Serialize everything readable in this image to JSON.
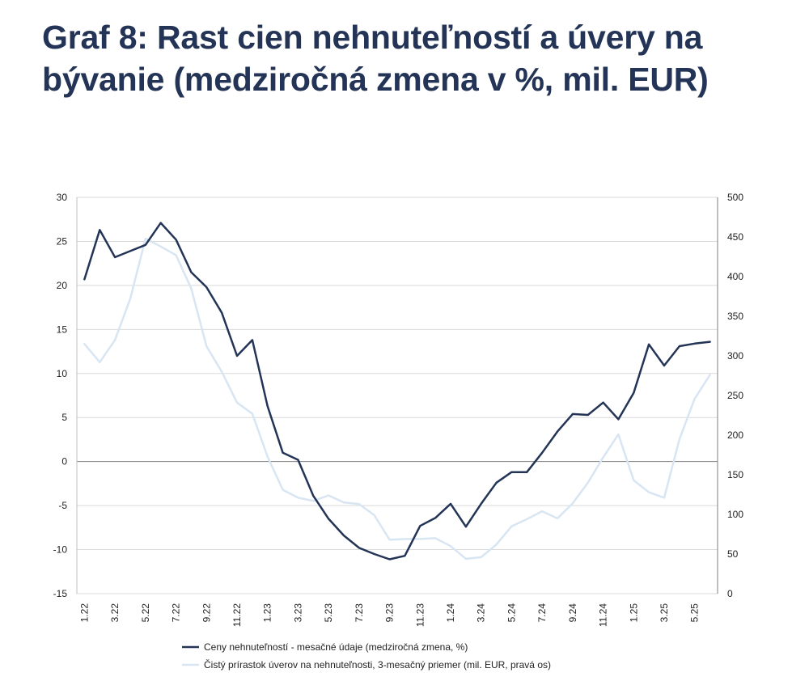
{
  "title": "Graf 8: Rast cien nehnuteľností a úvery na bývanie (medziročná zmena v %, mil. EUR)",
  "chart_data": {
    "type": "line",
    "y_left": {
      "ylim": [
        -15,
        30
      ],
      "ticks": [
        -15,
        -10,
        -5,
        0,
        5,
        10,
        15,
        20,
        25,
        30
      ]
    },
    "y_right": {
      "ylim": [
        0,
        500
      ],
      "ticks": [
        0,
        50,
        100,
        150,
        200,
        250,
        300,
        350,
        400,
        450,
        500
      ]
    },
    "x_labels": [
      "1.22",
      "3.22",
      "5.22",
      "7.22",
      "9.22",
      "11.22",
      "1.23",
      "3.23",
      "5.23",
      "7.23",
      "9.23",
      "11.23",
      "1.24",
      "3.24",
      "5.24",
      "7.24",
      "9.24",
      "11.24",
      "1.25",
      "3.25",
      "5.25"
    ],
    "legend_position": "bottom",
    "grid": true,
    "series": [
      {
        "name": "Ceny nehnuteľností - mesačné údaje (medziročná zmena, %)",
        "axis": "left",
        "color": "#233456",
        "values": [
          20.7,
          26.3,
          23.2,
          23.9,
          24.6,
          27.1,
          25.2,
          21.5,
          19.8,
          16.9,
          12.0,
          13.8,
          6.3,
          1.0,
          0.2,
          -3.9,
          -6.5,
          -8.4,
          -9.8,
          -10.5,
          -11.1,
          -10.7,
          -7.3,
          -6.4,
          -4.8,
          -7.4,
          -4.8,
          -2.4,
          -1.2,
          -1.2,
          1.0,
          3.4,
          5.4,
          5.3,
          6.7,
          4.8,
          7.8,
          13.3,
          10.9,
          13.1,
          13.4,
          13.6
        ]
      },
      {
        "name": "Čistý prírastok úverov na nehnuteľnosti, 3-mesačný priemer (mil. EUR, pravá os)",
        "axis": "right",
        "color": "#d8e5f2",
        "values": [
          315,
          292,
          320,
          372,
          448,
          438,
          427,
          385,
          312,
          280,
          241,
          227,
          173,
          131,
          121,
          117,
          124,
          115,
          113,
          99,
          68,
          69,
          69,
          70,
          60,
          44,
          46,
          62,
          85,
          94,
          104,
          95,
          114,
          140,
          172,
          201,
          143,
          128,
          121,
          195,
          246,
          276
        ]
      }
    ]
  }
}
